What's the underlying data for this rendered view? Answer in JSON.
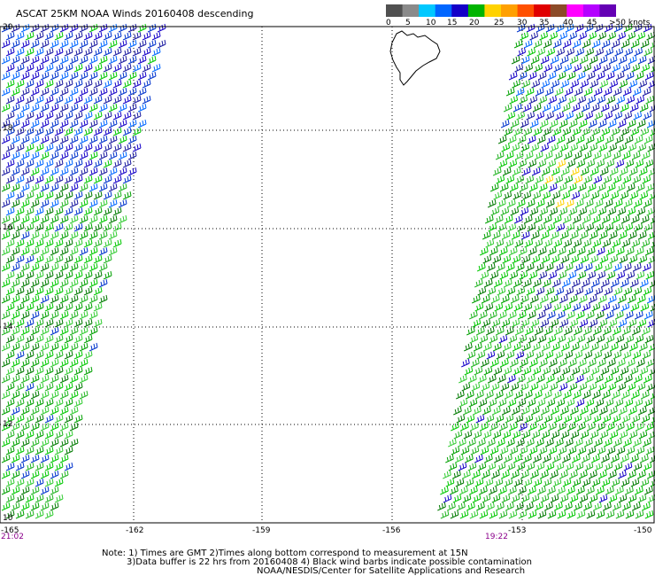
{
  "title": "ASCAT 25KM NOAA Winds 20160408 descending",
  "legend": {
    "labels": [
      "0",
      "5",
      "10",
      "15",
      "20",
      "25",
      "30",
      "35",
      "40",
      "45",
      ">50 knots"
    ],
    "colors": [
      "#505050",
      "#8a8a8a",
      "#00c8ff",
      "#0066ff",
      "#1400c8",
      "#00b400",
      "#ffd200",
      "#ffa000",
      "#ff5000",
      "#e00000",
      "#8c4b28",
      "#ff00ff",
      "#b400ff",
      "#6400b4"
    ]
  },
  "y_labels": [
    "20",
    "18",
    "16",
    "14",
    "12",
    "10"
  ],
  "x_labels": [
    "-165",
    "-162",
    "-159",
    "-156",
    "-153",
    "-150"
  ],
  "times": {
    "left": "21:02",
    "right": "19:22"
  },
  "notes": [
    "Note: 1) Times are GMT 2)Times along bottom correspond to measurement at 15N",
    "3)Data buffer is 22 hrs from 20160408 4) Black wind barbs indicate possible contamination",
    "NOAA/NESDIS/Center for Satellite Applications and Research"
  ],
  "map": {
    "lon_range": [
      -165,
      -150
    ],
    "lat_range": [
      10,
      20
    ],
    "island": "Hawaii",
    "swaths": [
      {
        "side": "west",
        "time": "21:02"
      },
      {
        "side": "east",
        "time": "19:22"
      }
    ]
  }
}
